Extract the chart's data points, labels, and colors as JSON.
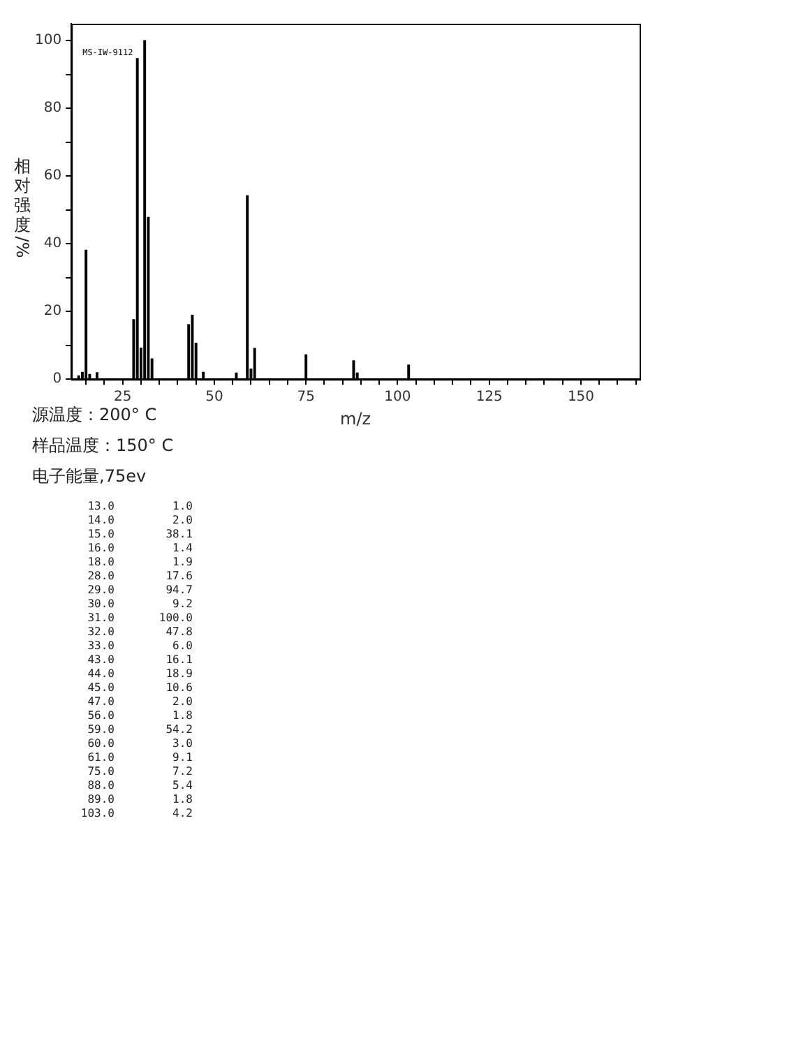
{
  "chart_data": [
    {
      "type": "bar",
      "ylabel": "相对强度/%",
      "xlabel": "m/z",
      "x": [
        13,
        14,
        15,
        16,
        18,
        28,
        29,
        30,
        31,
        32,
        33,
        43,
        44,
        45,
        47,
        56,
        59,
        60,
        61,
        75,
        88,
        89,
        103
      ],
      "values": [
        1.0,
        2.0,
        38.1,
        1.4,
        1.9,
        17.6,
        94.7,
        9.2,
        100.0,
        47.8,
        6.0,
        16.1,
        18.9,
        10.6,
        2.0,
        1.8,
        54.2,
        3.0,
        9.1,
        7.2,
        5.4,
        1.8,
        4.2
      ],
      "color": "#000000",
      "xlim": [
        11,
        166
      ],
      "xticks": [
        {
          "value": 15,
          "label": null
        },
        {
          "value": 20,
          "label": null
        },
        25,
        {
          "value": 30,
          "label": null
        },
        {
          "value": 35,
          "label": null
        },
        {
          "value": 40,
          "label": null
        },
        {
          "value": 45,
          "label": null
        },
        50,
        {
          "value": 55,
          "label": null
        },
        {
          "value": 60,
          "label": null
        },
        {
          "value": 65,
          "label": null
        },
        {
          "value": 70,
          "label": null
        },
        75,
        {
          "value": 80,
          "label": null
        },
        {
          "value": 85,
          "label": null
        },
        {
          "value": 90,
          "label": null
        },
        {
          "value": 95,
          "label": null
        },
        100,
        {
          "value": 105,
          "label": null
        },
        {
          "value": 110,
          "label": null
        },
        {
          "value": 115,
          "label": null
        },
        {
          "value": 120,
          "label": null
        },
        125,
        {
          "value": 130,
          "label": null
        },
        {
          "value": 135,
          "label": null
        },
        {
          "value": 140,
          "label": null
        },
        {
          "value": 145,
          "label": null
        },
        150,
        {
          "value": 155,
          "label": null
        },
        {
          "value": 160,
          "label": null
        },
        {
          "value": 165,
          "label": null
        }
      ],
      "ylim": [
        0,
        105
      ],
      "yticks": [
        0,
        {
          "value": 10,
          "label": null
        },
        20,
        {
          "value": 30,
          "label": null
        },
        40,
        {
          "value": 50,
          "label": null
        },
        60,
        {
          "value": 70,
          "label": null
        },
        80,
        {
          "value": 90,
          "label": null
        },
        100
      ],
      "grid": false,
      "legend": false,
      "annotations": [
        "MS-IW-9112",
        "源温度：200° C",
        "样品温度：150° C",
        "电子能量,75ev"
      ]
    },
    {
      "type": "other",
      "categories": [
        "13.0",
        "14.0",
        "15.0",
        "16.0",
        "18.0",
        "28.0",
        "29.0",
        "30.0",
        "31.0",
        "32.0",
        "33.0",
        "43.0",
        "44.0",
        "45.0",
        "47.0",
        "56.0",
        "59.0",
        "60.0",
        "61.0",
        "75.0",
        "88.0",
        "89.0",
        "103.0"
      ],
      "value_labels": [
        "1.0",
        "2.0",
        "38.1",
        "1.4",
        "1.9",
        "17.6",
        "94.7",
        "9.2",
        "100.0",
        "47.8",
        "6.0",
        "16.1",
        "18.9",
        "10.6",
        "2.0",
        "1.8",
        "54.2",
        "3.0",
        "9.1",
        "7.2",
        "5.4",
        "1.8",
        "4.2"
      ]
    }
  ]
}
